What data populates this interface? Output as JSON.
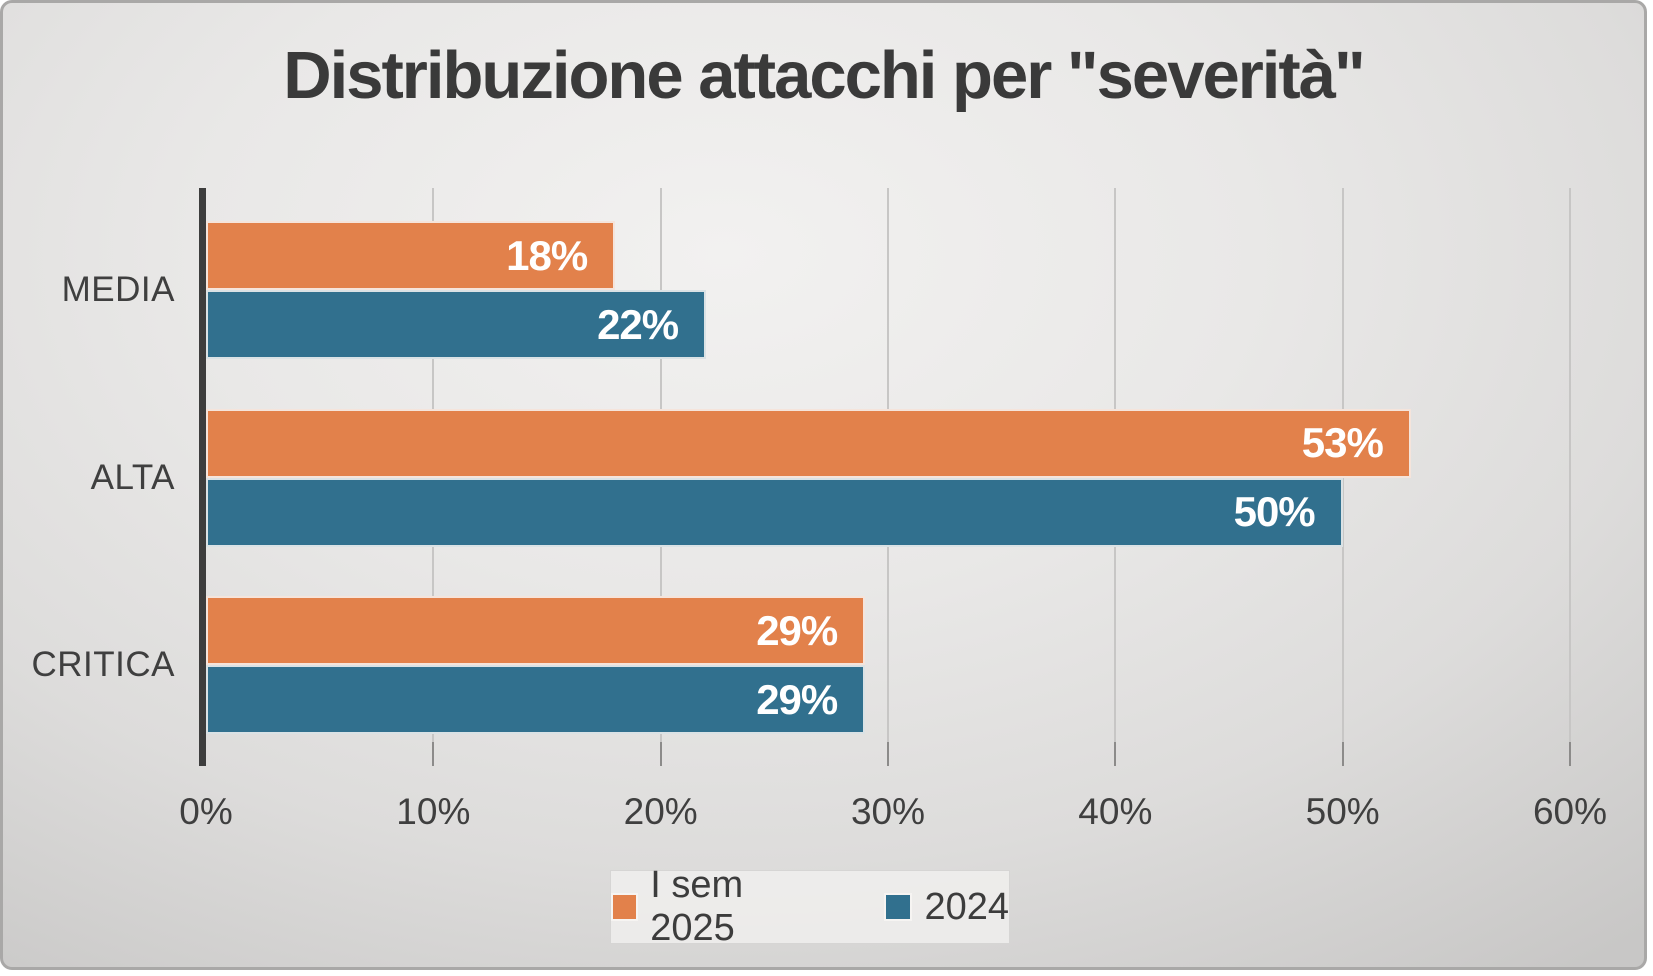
{
  "title": "Distribuzione attacchi per \"severità\"",
  "chart_data": {
    "type": "bar",
    "orientation": "horizontal",
    "title": "Distribuzione attacchi per \"severità\"",
    "categories": [
      "MEDIA",
      "ALTA",
      "CRITICA"
    ],
    "series": [
      {
        "name": "I sem 2025",
        "color": "#E2814B",
        "values": [
          18,
          53,
          29
        ]
      },
      {
        "name": "2024",
        "color": "#31708E",
        "values": [
          22,
          50,
          29
        ]
      }
    ],
    "data_label_format": "percent",
    "data_labels": [
      [
        "18%",
        "53%",
        "29%"
      ],
      [
        "22%",
        "50%",
        "29%"
      ]
    ],
    "xlim": [
      0,
      60
    ],
    "x_tick_values": [
      0,
      10,
      20,
      30,
      40,
      50,
      60
    ],
    "x_tick_labels": [
      "0%",
      "10%",
      "20%",
      "30%",
      "40%",
      "50%",
      "60%"
    ],
    "grid": "vertical-on",
    "legend_position": "bottom"
  },
  "legend": {
    "items": [
      {
        "label": "I sem 2025",
        "color": "#E2814B"
      },
      {
        "label": "2024",
        "color": "#31708E"
      }
    ]
  },
  "colors": {
    "series_1": "#E2814B",
    "series_2": "#31708E",
    "title_text": "#3a3a3a",
    "axis_text": "#3f3f3f",
    "data_label_text": "#ffffff",
    "gridline": "#c7c6c5",
    "axis_line": "#3d3d3d",
    "background_center": "#f2f1f0",
    "background_edge": "#c8c7c6"
  }
}
